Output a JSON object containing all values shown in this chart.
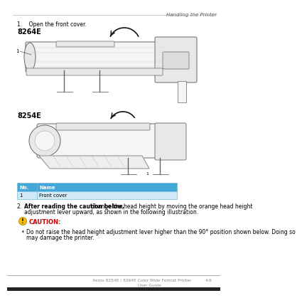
{
  "bg_color": "#ffffff",
  "header_text": "Handling the Printer",
  "step1_text": "1.    Open the front cover.",
  "label_8264E": "8264E",
  "label_8254E": "8254E",
  "table_header_bg": "#42a8d8",
  "table_header_text_color": "#ffffff",
  "table_row_bg": "#d0eaf7",
  "table_row_text_color": "#000000",
  "table_col1_header": "No.",
  "table_col2_header": "Name",
  "table_row1_col1": "1",
  "table_row1_col2": "Front cover",
  "step2_number": "2.",
  "step2_bold": "After reading the caution below,",
  "step2_rest": " change the head height by moving the orange head height adjustment lever upward, as shown in the following illustration.",
  "caution_icon_color": "#f5c000",
  "caution_text_color": "#cc0000",
  "caution_label": "CAUTION:",
  "bullet_char": "•",
  "bullet_text": "Do not raise the head height adjustment lever higher than the 90° position shown below. Doing so may damage the printer.",
  "footer_left": "Xerox 8254E / 8264E Color Wide Format Printer",
  "footer_right": "4-9",
  "footer_bottom": "User Guide",
  "footer_color": "#888888",
  "line_color": "#aaaaaa",
  "printer_edge": "#666666",
  "printer_fill": "#f5f5f5",
  "printer_fill2": "#e8e8e8",
  "arrow_color": "#111111"
}
